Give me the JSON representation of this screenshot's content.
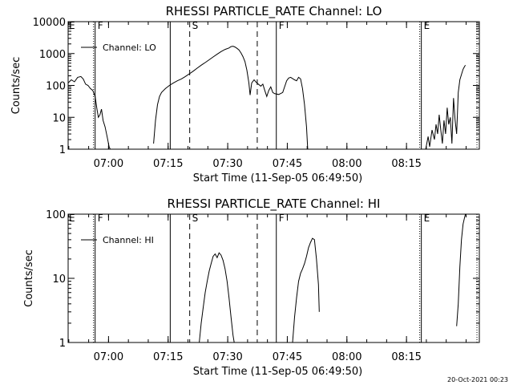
{
  "timestamp": "20-Oct-2021 00:23",
  "chart_data": [
    {
      "type": "line",
      "title": "RHESSI PARTICLE_RATE Channel: LO",
      "xlabel": "Start Time (11-Sep-05 06:49:50)",
      "ylabel": "Counts/sec",
      "yscale": "log",
      "ylim": [
        1,
        10000
      ],
      "xlim_minutes_after_start": [
        0,
        100
      ],
      "xticks": [
        "07:00",
        "07:15",
        "07:30",
        "07:45",
        "08:00",
        "08:15"
      ],
      "yticks": [
        "1",
        "10",
        "100",
        "1000",
        "10000"
      ],
      "legend": "top-left",
      "series": [
        {
          "name": "Channel: LO",
          "segments": [
            [
              [
                0.0,
                120
              ],
              [
                0.8,
                150
              ],
              [
                1.6,
                130
              ],
              [
                2.4,
                180
              ],
              [
                3.2,
                190
              ],
              [
                3.8,
                160
              ],
              [
                4.4,
                110
              ],
              [
                5.0,
                100
              ],
              [
                5.6,
                80
              ],
              [
                6.2,
                70
              ],
              [
                6.8,
                45
              ],
              [
                7.2,
                20
              ],
              [
                7.6,
                10
              ],
              [
                8.0,
                12
              ],
              [
                8.4,
                18
              ],
              [
                8.8,
                8
              ],
              [
                9.3,
                5
              ],
              [
                9.8,
                2.5
              ],
              [
                10.3,
                1.2
              ],
              [
                10.6,
                1
              ]
            ],
            [
              [
                21.5,
                1.5
              ],
              [
                22.0,
                8
              ],
              [
                22.5,
                25
              ],
              [
                23.0,
                45
              ],
              [
                23.5,
                60
              ],
              [
                24.5,
                80
              ],
              [
                25.5,
                100
              ],
              [
                26.5,
                120
              ],
              [
                27.5,
                140
              ],
              [
                28.5,
                160
              ],
              [
                29.5,
                190
              ],
              [
                30.5,
                230
              ],
              [
                31.5,
                280
              ],
              [
                32.5,
                350
              ],
              [
                33.5,
                430
              ],
              [
                34.5,
                520
              ],
              [
                35.5,
                640
              ],
              [
                36.5,
                780
              ],
              [
                37.5,
                950
              ],
              [
                38.5,
                1150
              ],
              [
                39.5,
                1350
              ],
              [
                40.5,
                1500
              ],
              [
                41.0,
                1650
              ],
              [
                41.5,
                1700
              ],
              [
                42.0,
                1600
              ],
              [
                42.5,
                1450
              ],
              [
                43.0,
                1300
              ],
              [
                43.5,
                1050
              ],
              [
                44.0,
                800
              ],
              [
                44.5,
                560
              ],
              [
                45.0,
                300
              ],
              [
                45.5,
                120
              ],
              [
                45.8,
                50
              ],
              [
                46.2,
                120
              ],
              [
                46.8,
                150
              ],
              [
                47.5,
                120
              ],
              [
                48.5,
                95
              ],
              [
                49.0,
                110
              ],
              [
                49.5,
                70
              ],
              [
                50.0,
                45
              ],
              [
                50.5,
                70
              ],
              [
                51.0,
                90
              ],
              [
                51.5,
                60
              ],
              [
                52.0,
                55
              ],
              [
                53.0,
                52
              ],
              [
                54.0,
                60
              ],
              [
                55.0,
                140
              ],
              [
                55.5,
                170
              ],
              [
                56.0,
                180
              ],
              [
                57.0,
                150
              ],
              [
                57.5,
                140
              ],
              [
                58.0,
                180
              ],
              [
                58.5,
                160
              ],
              [
                59.0,
                80
              ],
              [
                59.5,
                25
              ],
              [
                60.0,
                5
              ],
              [
                60.3,
                1
              ]
            ],
            [
              [
                90.0,
                1
              ],
              [
                90.6,
                2.5
              ],
              [
                91.0,
                1.2
              ],
              [
                91.6,
                4
              ],
              [
                92.2,
                2
              ],
              [
                92.6,
                6
              ],
              [
                93.0,
                3
              ],
              [
                93.4,
                12
              ],
              [
                93.8,
                4
              ],
              [
                94.2,
                1.5
              ],
              [
                94.6,
                8
              ],
              [
                95.0,
                3
              ],
              [
                95.4,
                20
              ],
              [
                95.8,
                6
              ],
              [
                96.2,
                10
              ],
              [
                96.6,
                1.5
              ],
              [
                97.0,
                40
              ],
              [
                97.4,
                8
              ],
              [
                97.8,
                3
              ],
              [
                98.2,
                60
              ],
              [
                98.6,
                150
              ],
              [
                99.0,
                220
              ],
              [
                99.4,
                320
              ],
              [
                99.8,
                400
              ],
              [
                100.0,
                430
              ]
            ]
          ]
        }
      ],
      "vertical_markers": [
        {
          "t": 6.8,
          "style": "dotted-solid",
          "label": "F"
        },
        {
          "t": 25.7,
          "style": "solid",
          "label": ""
        },
        {
          "t": 30.6,
          "style": "dashed",
          "label": "S"
        },
        {
          "t": 47.6,
          "style": "dashed",
          "label": ""
        },
        {
          "t": 52.4,
          "style": "solid",
          "label": "F"
        },
        {
          "t": 88.9,
          "style": "dotted-solid",
          "label": "E"
        },
        {
          "t": 102.9,
          "style": "dotted",
          "label": ""
        }
      ],
      "edge_label": "E"
    },
    {
      "type": "line",
      "title": "RHESSI PARTICLE_RATE Channel: HI",
      "xlabel": "Start Time (11-Sep-05 06:49:50)",
      "ylabel": "Counts/sec",
      "yscale": "log",
      "ylim": [
        1,
        100
      ],
      "xlim_minutes_after_start": [
        0,
        100
      ],
      "xticks": [
        "07:00",
        "07:15",
        "07:30",
        "07:45",
        "08:00",
        "08:15"
      ],
      "yticks": [
        "1",
        "10",
        "100"
      ],
      "legend": "top-left",
      "series": [
        {
          "name": "Channel: HI",
          "segments": [
            [
              [
                33.0,
                1
              ],
              [
                33.5,
                2
              ],
              [
                34.0,
                3.5
              ],
              [
                34.5,
                6
              ],
              [
                35.0,
                9
              ],
              [
                35.5,
                13
              ],
              [
                36.0,
                17
              ],
              [
                36.5,
                22
              ],
              [
                37.0,
                24
              ],
              [
                37.5,
                21
              ],
              [
                38.0,
                25
              ],
              [
                38.5,
                23
              ],
              [
                39.0,
                19
              ],
              [
                39.5,
                14
              ],
              [
                40.0,
                9
              ],
              [
                40.5,
                5
              ],
              [
                41.0,
                2.5
              ],
              [
                41.5,
                1.3
              ],
              [
                41.8,
                1
              ]
            ],
            [
              [
                56.5,
                1
              ],
              [
                57.0,
                2.5
              ],
              [
                57.5,
                5
              ],
              [
                58.0,
                9
              ],
              [
                58.5,
                12
              ],
              [
                59.0,
                14
              ],
              [
                59.5,
                17
              ],
              [
                60.0,
                22
              ],
              [
                60.5,
                30
              ],
              [
                61.0,
                36
              ],
              [
                61.5,
                42
              ],
              [
                62.0,
                40
              ],
              [
                62.5,
                20
              ],
              [
                63.0,
                8
              ],
              [
                63.2,
                3
              ]
            ],
            [
              [
                97.8,
                1.8
              ],
              [
                98.2,
                4
              ],
              [
                98.6,
                15
              ],
              [
                99.0,
                40
              ],
              [
                99.4,
                70
              ],
              [
                99.8,
                90
              ],
              [
                100.0,
                100
              ]
            ]
          ]
        }
      ],
      "vertical_markers": [
        {
          "t": 6.8,
          "style": "dotted-solid",
          "label": "F"
        },
        {
          "t": 25.7,
          "style": "solid",
          "label": ""
        },
        {
          "t": 30.6,
          "style": "dashed",
          "label": "S"
        },
        {
          "t": 47.6,
          "style": "dashed",
          "label": ""
        },
        {
          "t": 52.4,
          "style": "solid",
          "label": "F"
        },
        {
          "t": 88.9,
          "style": "dotted-solid",
          "label": "E"
        },
        {
          "t": 102.9,
          "style": "dotted",
          "label": ""
        }
      ],
      "edge_label": "E"
    }
  ]
}
